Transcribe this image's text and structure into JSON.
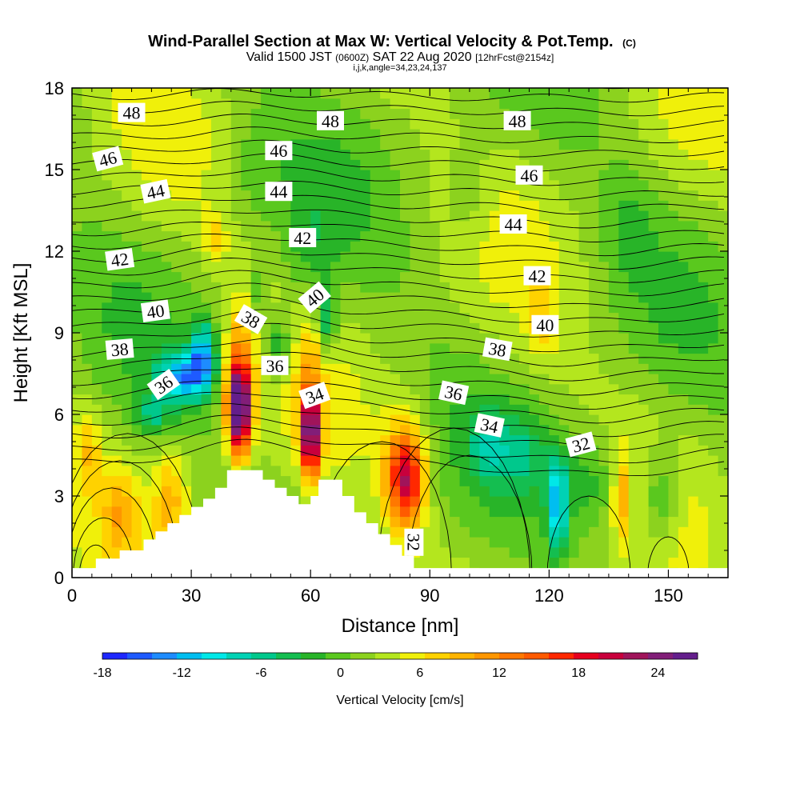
{
  "title": "Wind-Parallel Section at Max W: Vertical Velocity & Pot.Temp.",
  "title_mark": "(C)",
  "subtitle": {
    "prefix": "Valid 1500 JST",
    "utc": "(0600Z)",
    "date": "SAT 22 Aug 2020",
    "forecast": "[12hrFcst@2154z]"
  },
  "index_line": "i,j,k,angle=34,23,24,137",
  "chart_data": {
    "type": "heatmap",
    "xlabel": "Distance [nm]",
    "ylabel": "Height [Kft MSL]",
    "xlim": [
      0,
      165
    ],
    "ylim": [
      0,
      18
    ],
    "xticks": [
      "0",
      "30",
      "60",
      "90",
      "120",
      "150"
    ],
    "yticks": [
      "0",
      "3",
      "6",
      "9",
      "12",
      "15",
      "18"
    ],
    "colorbar": {
      "label": "Vertical Velocity [cm/s]",
      "min": -18,
      "max": 27,
      "ticks": [
        "-18",
        "-12",
        "-6",
        "0",
        "6",
        "12",
        "18",
        "24"
      ],
      "colors": [
        "#1e28ff",
        "#1e5aff",
        "#1e8cff",
        "#00bef0",
        "#00e8e8",
        "#00d2b4",
        "#00c88c",
        "#14be50",
        "#28b428",
        "#5ac81e",
        "#8cd21e",
        "#b4e61e",
        "#f0f00a",
        "#ffd200",
        "#ffb400",
        "#ff9600",
        "#ff7800",
        "#ff5a00",
        "#ff2800",
        "#e6001e",
        "#c8003c",
        "#a0145a",
        "#821e78",
        "#641e8c"
      ]
    },
    "theta_labels": [
      {
        "text": "48",
        "x": 15,
        "y": 17.1,
        "angle": 0
      },
      {
        "text": "48",
        "x": 65,
        "y": 16.8,
        "angle": 0
      },
      {
        "text": "48",
        "x": 112,
        "y": 16.8,
        "angle": 0
      },
      {
        "text": "46",
        "x": 9,
        "y": 15.4,
        "angle": -15
      },
      {
        "text": "46",
        "x": 52,
        "y": 15.7,
        "angle": 0
      },
      {
        "text": "46",
        "x": 115,
        "y": 14.8,
        "angle": 0
      },
      {
        "text": "44",
        "x": 21,
        "y": 14.2,
        "angle": -12
      },
      {
        "text": "44",
        "x": 52,
        "y": 14.2,
        "angle": 0
      },
      {
        "text": "44",
        "x": 111,
        "y": 13.0,
        "angle": 0
      },
      {
        "text": "42",
        "x": 12,
        "y": 11.7,
        "angle": -8
      },
      {
        "text": "42",
        "x": 58,
        "y": 12.5,
        "angle": 0
      },
      {
        "text": "42",
        "x": 117,
        "y": 11.1,
        "angle": 0
      },
      {
        "text": "40",
        "x": 21,
        "y": 9.8,
        "angle": -8
      },
      {
        "text": "40",
        "x": 61,
        "y": 10.3,
        "angle": -40
      },
      {
        "text": "40",
        "x": 119,
        "y": 9.3,
        "angle": 0
      },
      {
        "text": "38",
        "x": 12,
        "y": 8.4,
        "angle": -5
      },
      {
        "text": "38",
        "x": 45,
        "y": 9.5,
        "angle": 30
      },
      {
        "text": "38",
        "x": 107,
        "y": 8.4,
        "angle": 10
      },
      {
        "text": "36",
        "x": 23,
        "y": 7.1,
        "angle": -35
      },
      {
        "text": "36",
        "x": 51,
        "y": 7.8,
        "angle": 0
      },
      {
        "text": "36",
        "x": 96,
        "y": 6.8,
        "angle": 12
      },
      {
        "text": "34",
        "x": 61,
        "y": 6.7,
        "angle": -20
      },
      {
        "text": "34",
        "x": 105,
        "y": 5.6,
        "angle": 12
      },
      {
        "text": "32",
        "x": 128,
        "y": 4.9,
        "angle": -15
      },
      {
        "text": "32",
        "x": 86,
        "y": 1.3,
        "angle": 90
      }
    ]
  }
}
